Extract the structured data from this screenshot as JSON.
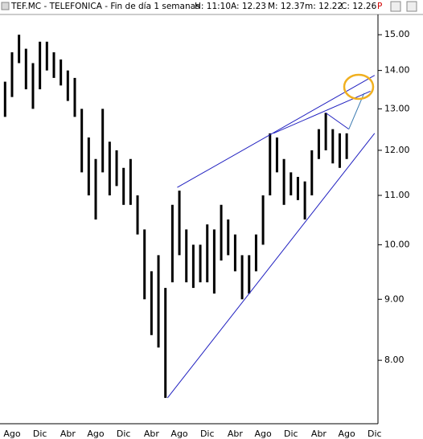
{
  "chart_data": {
    "type": "hilo",
    "title": "TEF.MC - TELEFONICA - Fin de día 1 semanas",
    "fields": [
      "H: 11:10",
      "A: 12.23",
      "M: 12.37",
      "m: 12.22",
      "C: 12.26"
    ],
    "flag": "P",
    "categories": [
      null,
      "Ago",
      null,
      null,
      null,
      "Dic",
      null,
      null,
      null,
      "Abr",
      null,
      null,
      null,
      "Ago",
      null,
      null,
      null,
      "Dic",
      null,
      null,
      null,
      "Abr",
      null,
      null,
      null,
      "Ago",
      null,
      null,
      null,
      "Dic",
      null,
      null,
      null,
      "Abr",
      null,
      null,
      null,
      "Ago",
      null,
      null,
      null,
      "Dic",
      null,
      null,
      null,
      "Abr",
      null,
      null,
      null,
      "Ago",
      null,
      null,
      null,
      "Dic"
    ],
    "high": [
      13.7,
      14.5,
      15.0,
      14.6,
      14.2,
      14.8,
      14.8,
      14.5,
      14.3,
      14.0,
      13.8,
      13.0,
      12.3,
      11.8,
      13.0,
      12.2,
      12.0,
      11.6,
      11.8,
      11.0,
      10.3,
      9.5,
      9.8,
      9.2,
      10.8,
      11.1,
      10.3,
      10.0,
      10.0,
      10.4,
      10.3,
      10.8,
      10.5,
      10.2,
      9.8,
      9.8,
      10.2,
      11.0,
      12.4,
      12.3,
      11.8,
      11.5,
      11.4,
      11.3,
      12.0,
      12.5,
      12.9,
      12.5,
      12.4,
      12.4,
      null,
      null,
      null,
      null
    ],
    "low": [
      12.8,
      13.3,
      14.2,
      13.5,
      13.0,
      13.5,
      14.0,
      13.8,
      13.6,
      13.2,
      12.8,
      11.5,
      11.0,
      10.5,
      11.5,
      11.0,
      11.2,
      10.8,
      10.8,
      10.2,
      9.0,
      8.4,
      8.2,
      7.44,
      9.3,
      9.8,
      9.3,
      9.2,
      9.3,
      9.3,
      9.1,
      9.7,
      9.8,
      9.5,
      9.0,
      9.1,
      9.5,
      10.0,
      11.0,
      11.5,
      10.8,
      11.0,
      10.9,
      10.5,
      11.0,
      11.8,
      12.0,
      11.7,
      11.6,
      11.8,
      null,
      null,
      null,
      null
    ],
    "color": "#000000",
    "log_scale": true,
    "ylim": [
      7.1,
      15.55
    ],
    "yticks": [
      {
        "value": 15,
        "label": "15.00"
      },
      {
        "value": 14,
        "label": "14.00"
      },
      {
        "value": 13,
        "label": "13.00"
      },
      {
        "value": 12,
        "label": "12.00"
      },
      {
        "value": 11,
        "label": "11.00"
      },
      {
        "value": 10,
        "label": "10.00"
      },
      {
        "value": 9,
        "label": "9.00"
      },
      {
        "value": 8,
        "label": "8.00"
      }
    ],
    "trendlines": [
      {
        "x": [
          23.3,
          53
        ],
        "y": [
          7.44,
          12.4
        ],
        "color": "#2020c0"
      },
      {
        "x": [
          24.7,
          53
        ],
        "y": [
          11.17,
          13.87
        ],
        "color": "#2020c0"
      },
      {
        "x": [
          38.5,
          52.4
        ],
        "y": [
          12.4,
          13.45
        ],
        "color": "#2020c0"
      },
      {
        "x": [
          46,
          49.3
        ],
        "y": [
          12.9,
          12.5
        ],
        "color": "#2020c0"
      },
      {
        "x": [
          49.3,
          51.5
        ],
        "y": [
          12.5,
          13.4
        ],
        "color": "#3a7ab0"
      }
    ]
  }
}
